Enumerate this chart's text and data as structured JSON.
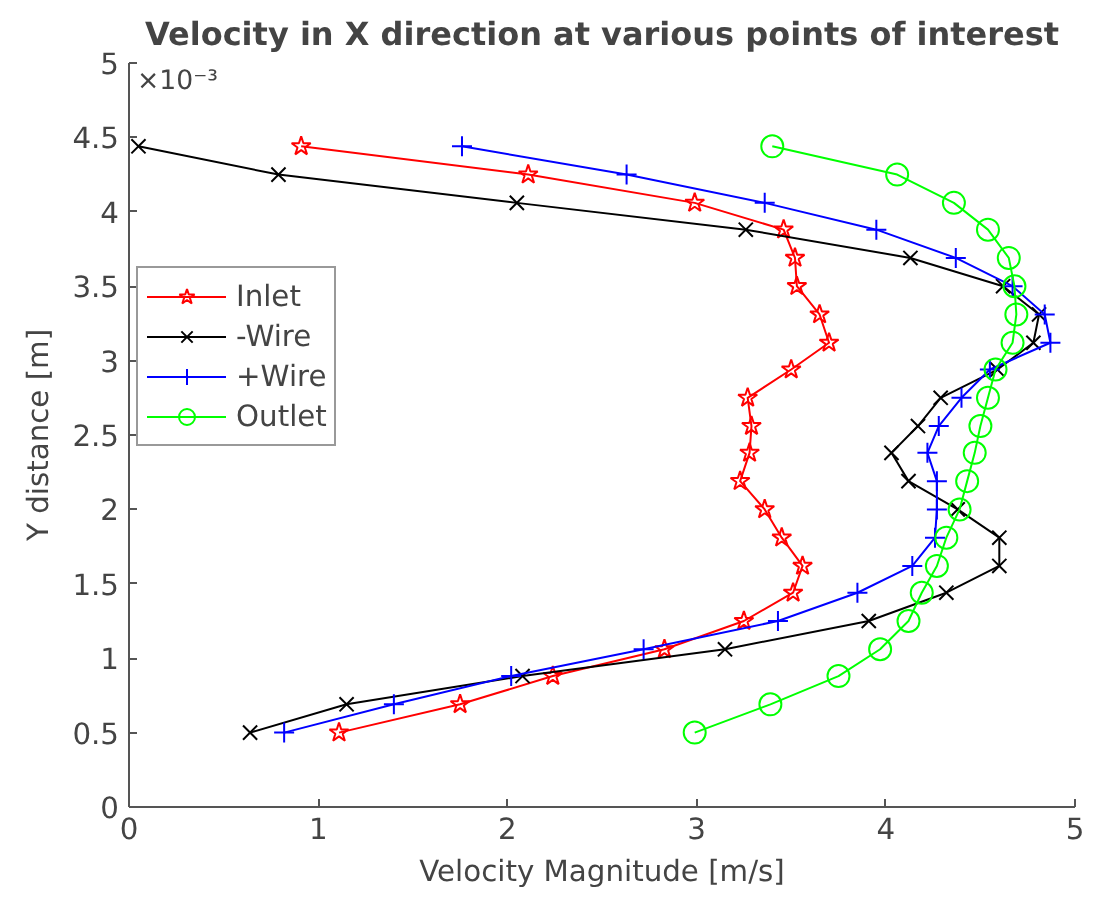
{
  "chart_data": {
    "type": "line",
    "title": "Velocity in X direction at various points of interest",
    "xlabel": "Velocity Magnitude [m/s]",
    "ylabel": "Y distance [m]",
    "annotations": [
      "×10⁻³"
    ],
    "xlim": [
      0,
      5
    ],
    "xticks": [
      0,
      1,
      2,
      3,
      4,
      5
    ],
    "ylim": [
      0,
      5
    ],
    "yticks": [
      0,
      0.5,
      1,
      1.5,
      2,
      2.5,
      3,
      3.5,
      4,
      4.5,
      5
    ],
    "grid": false,
    "legend": "top left",
    "line_style": "solid",
    "series": [
      {
        "name": "Inlet",
        "color": "#ff0000",
        "marker": "star",
        "x": [
          1.11,
          1.75,
          2.24,
          2.83,
          3.25,
          3.51,
          3.56,
          3.45,
          3.36,
          3.23,
          3.28,
          3.29,
          3.27,
          3.5,
          3.7,
          3.65,
          3.53,
          3.52,
          3.46,
          2.99,
          2.11,
          0.91
        ],
        "values": [
          0.5,
          0.69,
          0.88,
          1.06,
          1.25,
          1.44,
          1.62,
          1.81,
          2.0,
          2.19,
          2.38,
          2.56,
          2.75,
          2.94,
          3.12,
          3.31,
          3.5,
          3.69,
          3.88,
          4.06,
          4.25,
          4.44
        ]
      },
      {
        "name": "-Wire",
        "color": "#000000",
        "marker": "cross",
        "x": [
          0.64,
          1.15,
          2.08,
          3.15,
          3.91,
          4.32,
          4.6,
          4.6,
          4.38,
          4.12,
          4.03,
          4.17,
          4.29,
          4.59,
          4.78,
          4.81,
          4.62,
          4.13,
          3.26,
          2.05,
          0.79,
          0.05
        ],
        "values": [
          0.5,
          0.69,
          0.88,
          1.06,
          1.25,
          1.44,
          1.62,
          1.81,
          2.0,
          2.19,
          2.38,
          2.56,
          2.75,
          2.94,
          3.12,
          3.31,
          3.5,
          3.69,
          3.88,
          4.06,
          4.25,
          4.44
        ]
      },
      {
        "name": "+Wire",
        "color": "#0000ff",
        "marker": "plus",
        "x": [
          0.82,
          1.4,
          2.02,
          2.72,
          3.43,
          3.85,
          4.14,
          4.26,
          4.27,
          4.27,
          4.22,
          4.28,
          4.4,
          4.55,
          4.87,
          4.84,
          4.67,
          4.37,
          3.95,
          3.36,
          2.63,
          1.76
        ],
        "values": [
          0.5,
          0.69,
          0.88,
          1.06,
          1.25,
          1.44,
          1.62,
          1.81,
          2.0,
          2.19,
          2.38,
          2.56,
          2.75,
          2.94,
          3.12,
          3.31,
          3.5,
          3.69,
          3.88,
          4.06,
          4.25,
          4.44
        ]
      },
      {
        "name": "Outlet",
        "color": "#00ff00",
        "marker": "circle",
        "x": [
          2.99,
          3.39,
          3.75,
          3.97,
          4.12,
          4.19,
          4.27,
          4.32,
          4.39,
          4.43,
          4.47,
          4.5,
          4.54,
          4.58,
          4.67,
          4.69,
          4.68,
          4.65,
          4.54,
          4.36,
          4.06,
          3.4
        ],
        "values": [
          0.5,
          0.69,
          0.88,
          1.06,
          1.25,
          1.44,
          1.62,
          1.81,
          2.0,
          2.19,
          2.38,
          2.56,
          2.75,
          2.94,
          3.12,
          3.31,
          3.5,
          3.69,
          3.88,
          4.06,
          4.25,
          4.44
        ]
      }
    ]
  }
}
